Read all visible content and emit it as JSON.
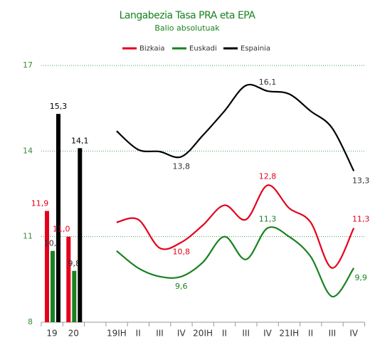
{
  "chart_data": [
    {
      "type": "bar",
      "title": "Langabezia Tasa PRA eta EPA",
      "subtitle": "Balio absolutuak",
      "categories": [
        "19",
        "20"
      ],
      "series": [
        {
          "name": "Bizkaia",
          "color": "#e3001b",
          "values": [
            11.9,
            11.0
          ],
          "value_labels": [
            "11,9",
            "11,0"
          ]
        },
        {
          "name": "Euskadi",
          "color": "#18821f",
          "values": [
            10.5,
            9.8
          ],
          "value_labels": [
            "10,5",
            "9,8"
          ]
        },
        {
          "name": "Espainia",
          "color": "#000000",
          "values": [
            15.3,
            14.1
          ],
          "value_labels": [
            "15,3",
            "14,1"
          ]
        }
      ],
      "ylim": [
        8,
        17
      ],
      "yticks": [
        8,
        11,
        14,
        17
      ],
      "grid": true,
      "legend": "top"
    },
    {
      "type": "line",
      "categories": [
        "19IH",
        "II",
        "III",
        "IV",
        "20IH",
        "II",
        "III",
        "IV",
        "21IH",
        "II",
        "III",
        "IV"
      ],
      "series": [
        {
          "color": "#e3001b",
          "values": [
            11.5,
            11.6,
            10.6,
            10.8,
            11.4,
            12.1,
            11.6,
            12.8,
            12.0,
            11.5,
            9.9,
            11.3
          ],
          "value_labels": [
            null,
            null,
            null,
            "10,8",
            null,
            null,
            null,
            "12,8",
            null,
            null,
            null,
            "11,3"
          ]
        },
        {
          "color": "#18821f",
          "values": [
            10.5,
            9.9,
            9.6,
            9.6,
            10.1,
            11.0,
            10.2,
            11.3,
            11.0,
            10.3,
            8.9,
            9.9
          ],
          "value_labels": [
            null,
            null,
            null,
            "9,6",
            null,
            null,
            null,
            "11,3",
            null,
            null,
            null,
            "9,9"
          ]
        },
        {
          "color": "#000000",
          "values": [
            14.7,
            14.05,
            13.98,
            13.8,
            14.55,
            15.4,
            16.3,
            16.1,
            16.0,
            15.4,
            14.8,
            13.3
          ],
          "value_labels": [
            null,
            null,
            null,
            "13,8",
            null,
            null,
            null,
            "16,1",
            null,
            null,
            null,
            "13,3"
          ]
        }
      ],
      "ylim": [
        8,
        17
      ]
    }
  ]
}
